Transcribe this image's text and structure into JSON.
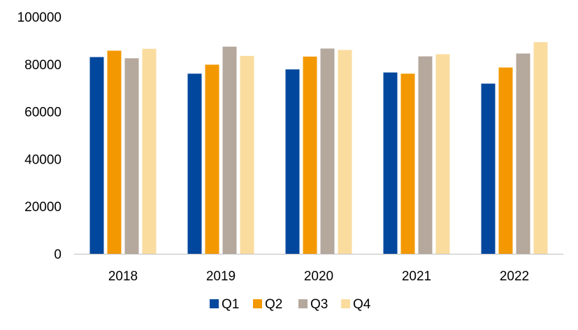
{
  "chart_data": {
    "type": "bar",
    "title": "",
    "xlabel": "",
    "ylabel": "",
    "categories": [
      "2018",
      "2019",
      "2020",
      "2021",
      "2022"
    ],
    "series": [
      {
        "name": "Q1",
        "color": "#00479d",
        "values": [
          83000,
          76000,
          77800,
          76500,
          71800
        ]
      },
      {
        "name": "Q2",
        "color": "#f39800",
        "values": [
          85700,
          79800,
          83200,
          76000,
          78600
        ]
      },
      {
        "name": "Q3",
        "color": "#b5a89c",
        "values": [
          82500,
          87400,
          86600,
          83300,
          84500
        ]
      },
      {
        "name": "Q4",
        "color": "#fadc9f",
        "values": [
          86500,
          83500,
          86000,
          84200,
          89300
        ]
      }
    ],
    "ylim": [
      0,
      100000
    ],
    "yticks": [
      "0",
      "20000",
      "40000",
      "60000",
      "80000",
      "100000"
    ],
    "grid": false,
    "legend_position": "bottom"
  }
}
